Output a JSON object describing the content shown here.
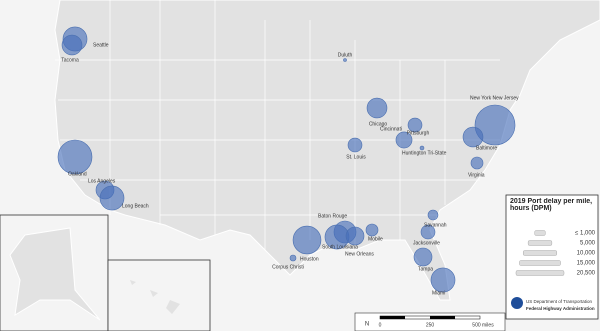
{
  "map": {
    "measure": "2019 Port delay per mile, hours (DPM)",
    "ports": [
      {
        "name": "Seattle",
        "dpm": 7400
      },
      {
        "name": "Tacoma",
        "dpm": 5100
      },
      {
        "name": "Duluth",
        "dpm": 100
      },
      {
        "name": "Chicago",
        "dpm": 5100
      },
      {
        "name": "Cincinnati",
        "dpm": 3300
      },
      {
        "name": "Pittsburgh",
        "dpm": 2500
      },
      {
        "name": "New York New Jersey",
        "dpm": 20500
      },
      {
        "name": "Baltimore",
        "dpm": 5100
      },
      {
        "name": "St. Louis",
        "dpm": 2500
      },
      {
        "name": "Huntington Tri-State",
        "dpm": 200
      },
      {
        "name": "Virginia",
        "dpm": 1850
      },
      {
        "name": "Oakland",
        "dpm": 14800
      },
      {
        "name": "Los Angeles",
        "dpm": 4150
      },
      {
        "name": "Long Beach",
        "dpm": 7400
      },
      {
        "name": "Baton Rouge",
        "dpm": 6200
      },
      {
        "name": "South Louisiana",
        "dpm": 7400
      },
      {
        "name": "New Orleans",
        "dpm": 4150
      },
      {
        "name": "Houston",
        "dpm": 10000
      },
      {
        "name": "Corpus Christi",
        "dpm": 460
      },
      {
        "name": "Mobile",
        "dpm": 1850
      },
      {
        "name": "Savannah",
        "dpm": 1280
      },
      {
        "name": "Jacksonville",
        "dpm": 2500
      },
      {
        "name": "Tampa",
        "dpm": 4150
      },
      {
        "name": "Miami",
        "dpm": 7400
      }
    ]
  },
  "legend": {
    "title": "2019 Port delay per mile, hours (DPM)",
    "items": [
      {
        "value": 1000,
        "label": "≤ 1,000"
      },
      {
        "value": 5000,
        "label": "5,000"
      },
      {
        "value": 10000,
        "label": "10,000"
      },
      {
        "value": 15000,
        "label": "15,000"
      },
      {
        "value": 20500,
        "label": "20,500"
      }
    ],
    "agency": [
      "US Department of Transportation",
      "Federal Highway Administration"
    ]
  },
  "scale": {
    "north": "N",
    "labels": [
      "0",
      "250",
      "500 miles"
    ]
  }
}
